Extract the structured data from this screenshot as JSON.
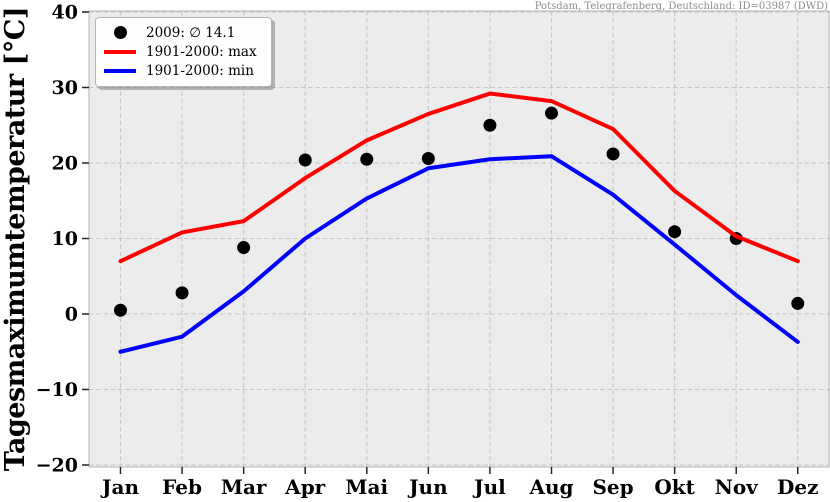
{
  "header": {
    "station_note": "Potsdam, Telegrafenberg, Deutschland: ID=03987 (DWD)"
  },
  "legend": {
    "items": [
      {
        "label": "2009: ∅ 14.1",
        "marker": "dot",
        "color": "#000000"
      },
      {
        "label": "1901-2000: max",
        "marker": "line",
        "color": "#ff0000"
      },
      {
        "label": "1901-2000: min",
        "marker": "line",
        "color": "#0000ff"
      }
    ]
  },
  "chart_data": {
    "type": "line",
    "title": "",
    "ylabel": "Tagesmaximumtemperatur [°C]",
    "xlabel": "",
    "categories": [
      "Jan",
      "Feb",
      "Mar",
      "Apr",
      "Mai",
      "Jun",
      "Jul",
      "Aug",
      "Sep",
      "Okt",
      "Nov",
      "Dez"
    ],
    "series": [
      {
        "name": "2009: ∅ 14.1",
        "type": "scatter",
        "color": "#000000",
        "values": [
          0.5,
          2.8,
          8.8,
          20.4,
          20.5,
          20.6,
          25.0,
          26.6,
          21.2,
          10.9,
          10.0,
          1.4
        ],
        "annual_mean": 14.1
      },
      {
        "name": "1901-2000: max",
        "type": "line",
        "color": "#ff0000",
        "values": [
          7.0,
          10.8,
          12.3,
          18.0,
          23.0,
          26.5,
          29.2,
          28.2,
          24.5,
          16.3,
          10.3,
          7.0
        ]
      },
      {
        "name": "1901-2000: min",
        "type": "line",
        "color": "#0000ff",
        "values": [
          -5.0,
          -3.0,
          3.0,
          10.0,
          15.3,
          19.3,
          20.5,
          20.9,
          15.8,
          9.2,
          2.5,
          -3.7
        ]
      }
    ],
    "ylim": [
      -20,
      40
    ],
    "yticks": [
      40,
      30,
      20,
      10,
      0,
      -10,
      -20
    ],
    "ytick_labels": [
      "40",
      "30",
      "20",
      "10",
      "0",
      "−10",
      "−20"
    ],
    "grid": true,
    "grid_style": "dashed",
    "legend_position": "upper left",
    "plot_background": "#ececec",
    "grid_color": "#c6c6c6"
  }
}
